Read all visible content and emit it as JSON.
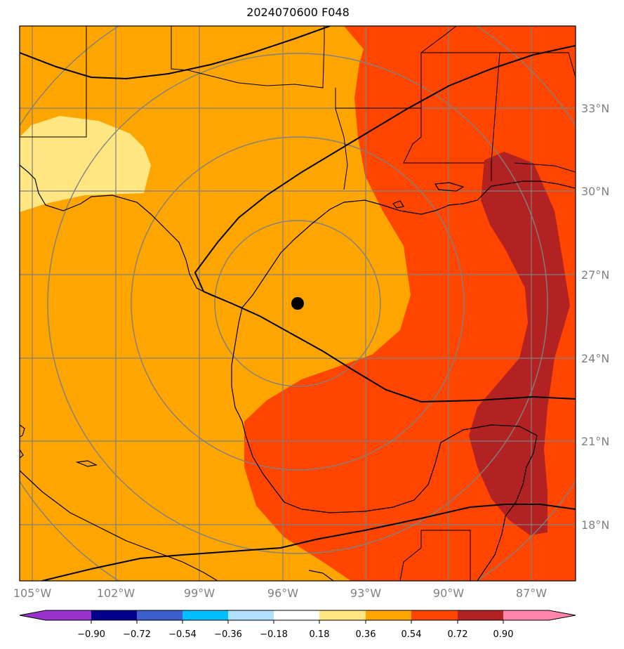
{
  "title": "2024070600 F048",
  "map": {
    "lon_ticks": [
      "105°W",
      "102°W",
      "99°W",
      "96°W",
      "93°W",
      "90°W",
      "87°W"
    ],
    "lat_ticks": [
      "33°N",
      "30°N",
      "27°N",
      "24°N",
      "21°N",
      "18°N"
    ],
    "gridline_color": "#808080",
    "storm_marker": "black-dot"
  },
  "colorbar": {
    "labels": [
      "−0.90",
      "−0.72",
      "−0.54",
      "−0.36",
      "−0.18",
      "0.18",
      "0.36",
      "0.54",
      "0.72",
      "0.90"
    ],
    "colors": [
      "#9932cc",
      "#00008b",
      "#3a5fcd",
      "#00bfff",
      "#b0e0ff",
      "#ffffff",
      "#ffe680",
      "#ffa500",
      "#ff4500",
      "#b22222",
      "#ff85ac"
    ]
  }
}
